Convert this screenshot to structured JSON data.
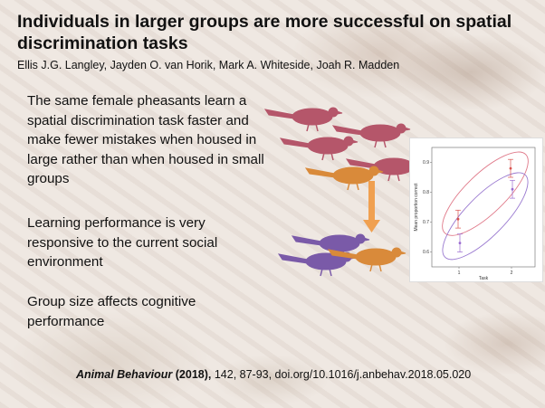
{
  "slide": {
    "title": "Individuals in larger groups are more successful on spatial discrimination tasks",
    "authors": "Ellis J.G. Langley, Jayden O. van Horik, Mark A. Whiteside, Joah R. Madden",
    "bullets": [
      "The same female pheasants learn a spatial discrimination task faster and make fewer mistakes when housed in large rather than when housed in small groups",
      "Learning performance is very responsive to the current social environment",
      "Group size affects cognitive performance"
    ],
    "citation_journal": "Animal Behaviour",
    "citation_year": " (2018), ",
    "citation_rest": "142, 87-93, doi.org/10.1016/j.anbehav.2018.05.020"
  },
  "colors": {
    "red_pheasant": "#b5566a",
    "orange_pheasant": "#d98a3a",
    "purple_pheasant": "#7a5aa8",
    "arrow": "#f0a050",
    "ellipse_red": "#e07a8a",
    "ellipse_purple": "#9a7ad0"
  },
  "chart_data": {
    "type": "scatter",
    "xlabel": "Task",
    "ylabel": "Mean proportion correct",
    "categories": [
      "1",
      "2"
    ],
    "yticks": [
      "0.6",
      "0.7",
      "0.8",
      "0.9"
    ],
    "ylim": [
      0.55,
      0.95
    ],
    "series": [
      {
        "values": [
          0.71,
          0.88
        ],
        "errors": [
          0.03,
          0.03
        ],
        "color": "#d9534f"
      },
      {
        "values": [
          0.63,
          0.81
        ],
        "errors": [
          0.03,
          0.03
        ],
        "color": "#9a6ad0"
      }
    ]
  }
}
